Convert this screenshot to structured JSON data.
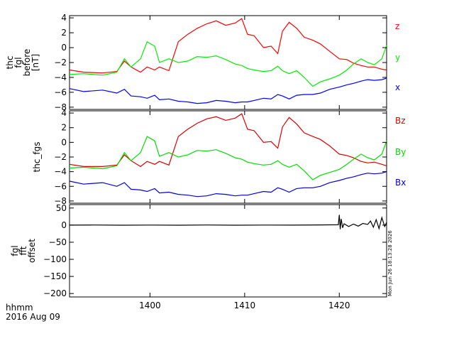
{
  "figure": {
    "x_time_label": "hhmm",
    "x_date_label": "2016 Aug 09",
    "x_range": [
      1391.5,
      1425
    ],
    "x_ticks": [
      1400,
      1410,
      1420
    ],
    "x_tick_labels": [
      "1400",
      "1410",
      "1420"
    ],
    "timestamp": "Mon Jun 26 18:13:28 2026"
  },
  "chart_data": [
    {
      "type": "line",
      "panel": "thc fgl before [nT]",
      "ylabel_lines": [
        "thc",
        "fgl",
        "before",
        "[nT]"
      ],
      "ylim": [
        -8.3,
        4.3
      ],
      "y_ticks": [
        4,
        2,
        0,
        -2,
        -4,
        -6,
        -8
      ],
      "y_tick_labels": [
        "4",
        "2",
        "0",
        "−2",
        "−4",
        "−6",
        "−8"
      ],
      "x": [
        1391.5,
        1393,
        1395,
        1396.5,
        1397.3,
        1398,
        1399,
        1399.7,
        1400.5,
        1401,
        1402,
        1403,
        1404,
        1405,
        1406,
        1407,
        1408,
        1409,
        1409.7,
        1410.3,
        1411,
        1412,
        1412.8,
        1413.5,
        1414,
        1414.7,
        1415.5,
        1416.3,
        1417.2,
        1418,
        1419,
        1420,
        1420.8,
        1421.5,
        1422.3,
        1423,
        1423.7,
        1424.5,
        1425
      ],
      "series": [
        {
          "name": "z",
          "color": "#ff0000",
          "values": [
            -3.0,
            -3.3,
            -3.4,
            -3.2,
            -1.8,
            -2.6,
            -3.3,
            -2.6,
            -3.0,
            -2.6,
            -3.1,
            0.8,
            1.8,
            2.6,
            3.2,
            3.6,
            3.0,
            3.3,
            3.9,
            1.8,
            1.6,
            0.0,
            0.2,
            -0.8,
            2.2,
            3.4,
            2.6,
            1.4,
            1.0,
            0.5,
            -0.5,
            -1.5,
            -1.6,
            -2.1,
            -2.4,
            -2.6,
            -2.6,
            -2.9,
            -3.0
          ]
        },
        {
          "name": "y",
          "color": "#00ee00",
          "values": [
            -3.6,
            -3.5,
            -3.7,
            -3.3,
            -1.5,
            -2.6,
            -1.5,
            0.8,
            0.2,
            -2.0,
            -1.5,
            -2.0,
            -1.8,
            -1.2,
            -1.3,
            -1.1,
            -1.6,
            -2.2,
            -2.4,
            -2.8,
            -3.0,
            -3.2,
            -3.1,
            -2.5,
            -3.1,
            -3.5,
            -3.1,
            -4.0,
            -5.2,
            -4.6,
            -4.2,
            -3.7,
            -3.0,
            -2.2,
            -1.5,
            -2.0,
            -2.3,
            -1.5,
            0.3
          ]
        },
        {
          "name": "x",
          "color": "#0000ff",
          "values": [
            -5.5,
            -5.9,
            -5.7,
            -6.1,
            -5.6,
            -6.5,
            -6.6,
            -6.8,
            -6.4,
            -7.0,
            -6.9,
            -7.2,
            -7.3,
            -7.5,
            -7.4,
            -7.1,
            -7.2,
            -7.4,
            -7.3,
            -7.3,
            -7.1,
            -6.8,
            -6.9,
            -6.3,
            -6.5,
            -6.9,
            -6.4,
            -6.3,
            -6.3,
            -6.1,
            -5.6,
            -5.3,
            -5.0,
            -4.8,
            -4.5,
            -4.3,
            -4.4,
            -4.3,
            -4.1
          ]
        }
      ]
    },
    {
      "type": "line",
      "panel": "thc_fgs",
      "ylabel_lines": [
        "thc_fgs"
      ],
      "ylim": [
        -8.3,
        4.3
      ],
      "y_ticks": [
        4,
        2,
        0,
        -2,
        -4,
        -6,
        -8
      ],
      "y_tick_labels": [
        "4",
        "2",
        "0",
        "−2",
        "−4",
        "−6",
        "−8"
      ],
      "x": [
        1391.5,
        1393,
        1395,
        1396.5,
        1397.3,
        1398,
        1399,
        1399.7,
        1400.5,
        1401,
        1402,
        1403,
        1404,
        1405,
        1406,
        1407,
        1408,
        1409,
        1409.7,
        1410.3,
        1411,
        1412,
        1412.8,
        1413.5,
        1414,
        1414.7,
        1415.5,
        1416.3,
        1417.2,
        1418,
        1419,
        1420,
        1420.8,
        1421.5,
        1422.3,
        1423,
        1423.7,
        1424.5,
        1425
      ],
      "series": [
        {
          "name": "Bz",
          "color": "#dd0000",
          "values": [
            -3.0,
            -3.3,
            -3.3,
            -3.1,
            -1.7,
            -2.5,
            -3.3,
            -2.6,
            -3.0,
            -2.6,
            -3.1,
            0.8,
            1.8,
            2.6,
            3.2,
            3.5,
            3.0,
            3.3,
            3.9,
            1.8,
            1.6,
            0.0,
            0.1,
            -0.8,
            2.1,
            3.4,
            2.5,
            1.3,
            0.8,
            0.4,
            -0.5,
            -1.6,
            -1.8,
            -2.1,
            -2.6,
            -2.8,
            -2.7,
            -3.0,
            -3.2
          ]
        },
        {
          "name": "By",
          "color": "#00dd00",
          "values": [
            -3.5,
            -3.4,
            -3.6,
            -3.2,
            -1.4,
            -2.5,
            -1.4,
            0.8,
            0.2,
            -1.9,
            -1.4,
            -2.0,
            -1.7,
            -1.1,
            -1.2,
            -1.0,
            -1.5,
            -2.1,
            -2.3,
            -2.7,
            -2.9,
            -3.1,
            -3.0,
            -2.5,
            -3.0,
            -3.4,
            -3.0,
            -3.9,
            -5.1,
            -4.5,
            -4.1,
            -3.7,
            -3.0,
            -2.3,
            -1.6,
            -2.1,
            -2.4,
            -1.6,
            0.2
          ]
        },
        {
          "name": "Bx",
          "color": "#0000dd",
          "values": [
            -5.3,
            -5.7,
            -5.5,
            -6.0,
            -5.5,
            -6.4,
            -6.5,
            -6.7,
            -6.3,
            -6.9,
            -6.8,
            -7.1,
            -7.2,
            -7.4,
            -7.3,
            -7.0,
            -7.1,
            -7.3,
            -7.2,
            -7.2,
            -7.0,
            -6.7,
            -6.8,
            -6.2,
            -6.4,
            -6.8,
            -6.3,
            -6.2,
            -6.2,
            -6.0,
            -5.5,
            -5.2,
            -4.9,
            -4.7,
            -4.4,
            -4.2,
            -4.3,
            -4.2,
            -4.0
          ]
        }
      ]
    },
    {
      "type": "line",
      "panel": "fgl fft offset",
      "ylabel_lines": [
        "fgl",
        "fft",
        "offset"
      ],
      "ylim": [
        -210,
        60
      ],
      "y_ticks": [
        50,
        0,
        -50,
        -100,
        -150,
        -200
      ],
      "y_tick_labels": [
        "50",
        "0",
        "−50",
        "−100",
        "−150",
        "−200"
      ],
      "x": [
        1391.5,
        1394,
        1397,
        1400,
        1403,
        1406,
        1409,
        1412,
        1415,
        1418,
        1419.9,
        1420.0,
        1420.1,
        1420.2,
        1420.35,
        1420.5,
        1421,
        1421.5,
        1422,
        1422.5,
        1423,
        1423.3,
        1423.6,
        1423.9,
        1424.2,
        1424.5,
        1424.8,
        1425
      ],
      "series": [
        {
          "name": "",
          "color": "#000000",
          "values": [
            0,
            0.4,
            -0.3,
            0.2,
            -0.2,
            0.3,
            -0.3,
            0.2,
            0.0,
            0.5,
            1.0,
            30,
            -12,
            18,
            -8,
            4,
            -4,
            3,
            -3,
            5,
            2,
            12,
            -6,
            16,
            -10,
            22,
            -4,
            8
          ]
        }
      ]
    }
  ]
}
